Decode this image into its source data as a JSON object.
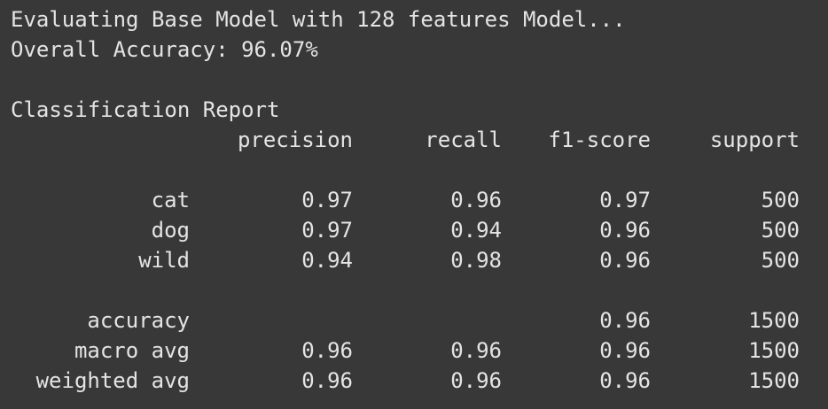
{
  "output": {
    "evaluating_line": "Evaluating Base Model with 128 features Model...",
    "accuracy_line": "Overall Accuracy: 96.07%",
    "report_title": "Classification Report"
  },
  "report": {
    "headers": {
      "precision": "precision",
      "recall": "recall",
      "f1": "f1-score",
      "support": "support"
    },
    "class_rows": [
      {
        "label": "cat",
        "precision": "0.97",
        "recall": "0.96",
        "f1": "0.97",
        "support": "500"
      },
      {
        "label": "dog",
        "precision": "0.97",
        "recall": "0.94",
        "f1": "0.96",
        "support": "500"
      },
      {
        "label": "wild",
        "precision": "0.94",
        "recall": "0.98",
        "f1": "0.96",
        "support": "500"
      }
    ],
    "summary_rows": [
      {
        "label": "accuracy",
        "precision": "",
        "recall": "",
        "f1": "0.96",
        "support": "1500"
      },
      {
        "label": "macro avg",
        "precision": "0.96",
        "recall": "0.96",
        "f1": "0.96",
        "support": "1500"
      },
      {
        "label": "weighted avg",
        "precision": "0.96",
        "recall": "0.96",
        "f1": "0.96",
        "support": "1500"
      }
    ]
  },
  "colors": {
    "background": "#383838",
    "text": "#e4e4e4"
  }
}
